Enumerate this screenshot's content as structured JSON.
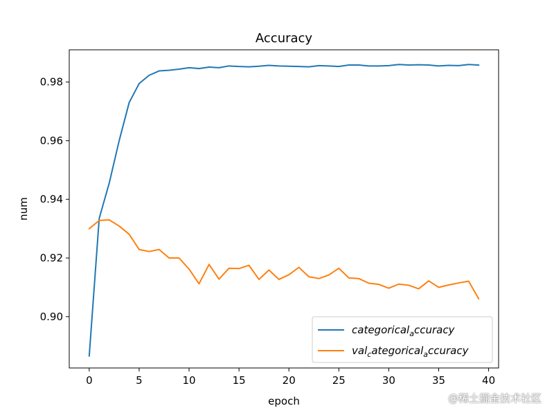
{
  "chart_data": {
    "type": "line",
    "title": "Accuracy",
    "xlabel": "epoch",
    "ylabel": "num",
    "xlim": [
      -2,
      41
    ],
    "ylim": [
      0.8825,
      0.991
    ],
    "xticks": [
      0,
      5,
      10,
      15,
      20,
      25,
      30,
      35,
      40
    ],
    "yticks": [
      0.9,
      0.92,
      0.94,
      0.96,
      0.98
    ],
    "ytick_labels": [
      "0.90",
      "0.92",
      "0.94",
      "0.96",
      "0.98"
    ],
    "grid": false,
    "legend_position": "lower-right",
    "x": [
      0,
      1,
      2,
      3,
      4,
      5,
      6,
      7,
      8,
      9,
      10,
      11,
      12,
      13,
      14,
      15,
      16,
      17,
      18,
      19,
      20,
      21,
      22,
      23,
      24,
      25,
      26,
      27,
      28,
      29,
      30,
      31,
      32,
      33,
      34,
      35,
      36,
      37,
      38,
      39
    ],
    "series": [
      {
        "legend_main": "categorical",
        "legend_sub": "a",
        "legend_tail": "ccuracy",
        "color": "#1f77b4",
        "values": [
          0.8866,
          0.9335,
          0.9455,
          0.96,
          0.973,
          0.9795,
          0.9823,
          0.9838,
          0.984,
          0.9844,
          0.9849,
          0.9846,
          0.9851,
          0.9849,
          0.9855,
          0.9853,
          0.9852,
          0.9854,
          0.9857,
          0.9855,
          0.9854,
          0.9853,
          0.9852,
          0.9856,
          0.9855,
          0.9853,
          0.9858,
          0.9858,
          0.9855,
          0.9855,
          0.9856,
          0.986,
          0.9858,
          0.9859,
          0.9858,
          0.9855,
          0.9857,
          0.9856,
          0.986,
          0.9858
        ]
      },
      {
        "legend_main": "val",
        "legend_sub": "c",
        "legend_tail": "ategorical",
        "legend_sub2": "a",
        "legend_tail2": "ccuracy",
        "color": "#ff7f0e",
        "values": [
          0.93,
          0.9328,
          0.933,
          0.9309,
          0.9281,
          0.9229,
          0.9222,
          0.9229,
          0.92,
          0.92,
          0.9162,
          0.9112,
          0.9178,
          0.9128,
          0.9165,
          0.9164,
          0.9175,
          0.9127,
          0.9159,
          0.9127,
          0.9143,
          0.9168,
          0.9136,
          0.913,
          0.9142,
          0.9165,
          0.9132,
          0.913,
          0.9114,
          0.911,
          0.9097,
          0.9111,
          0.9107,
          0.9095,
          0.9122,
          0.91,
          0.9108,
          0.9115,
          0.9121,
          0.9061
        ]
      }
    ]
  },
  "watermark": "@稀土掘金技术社区"
}
